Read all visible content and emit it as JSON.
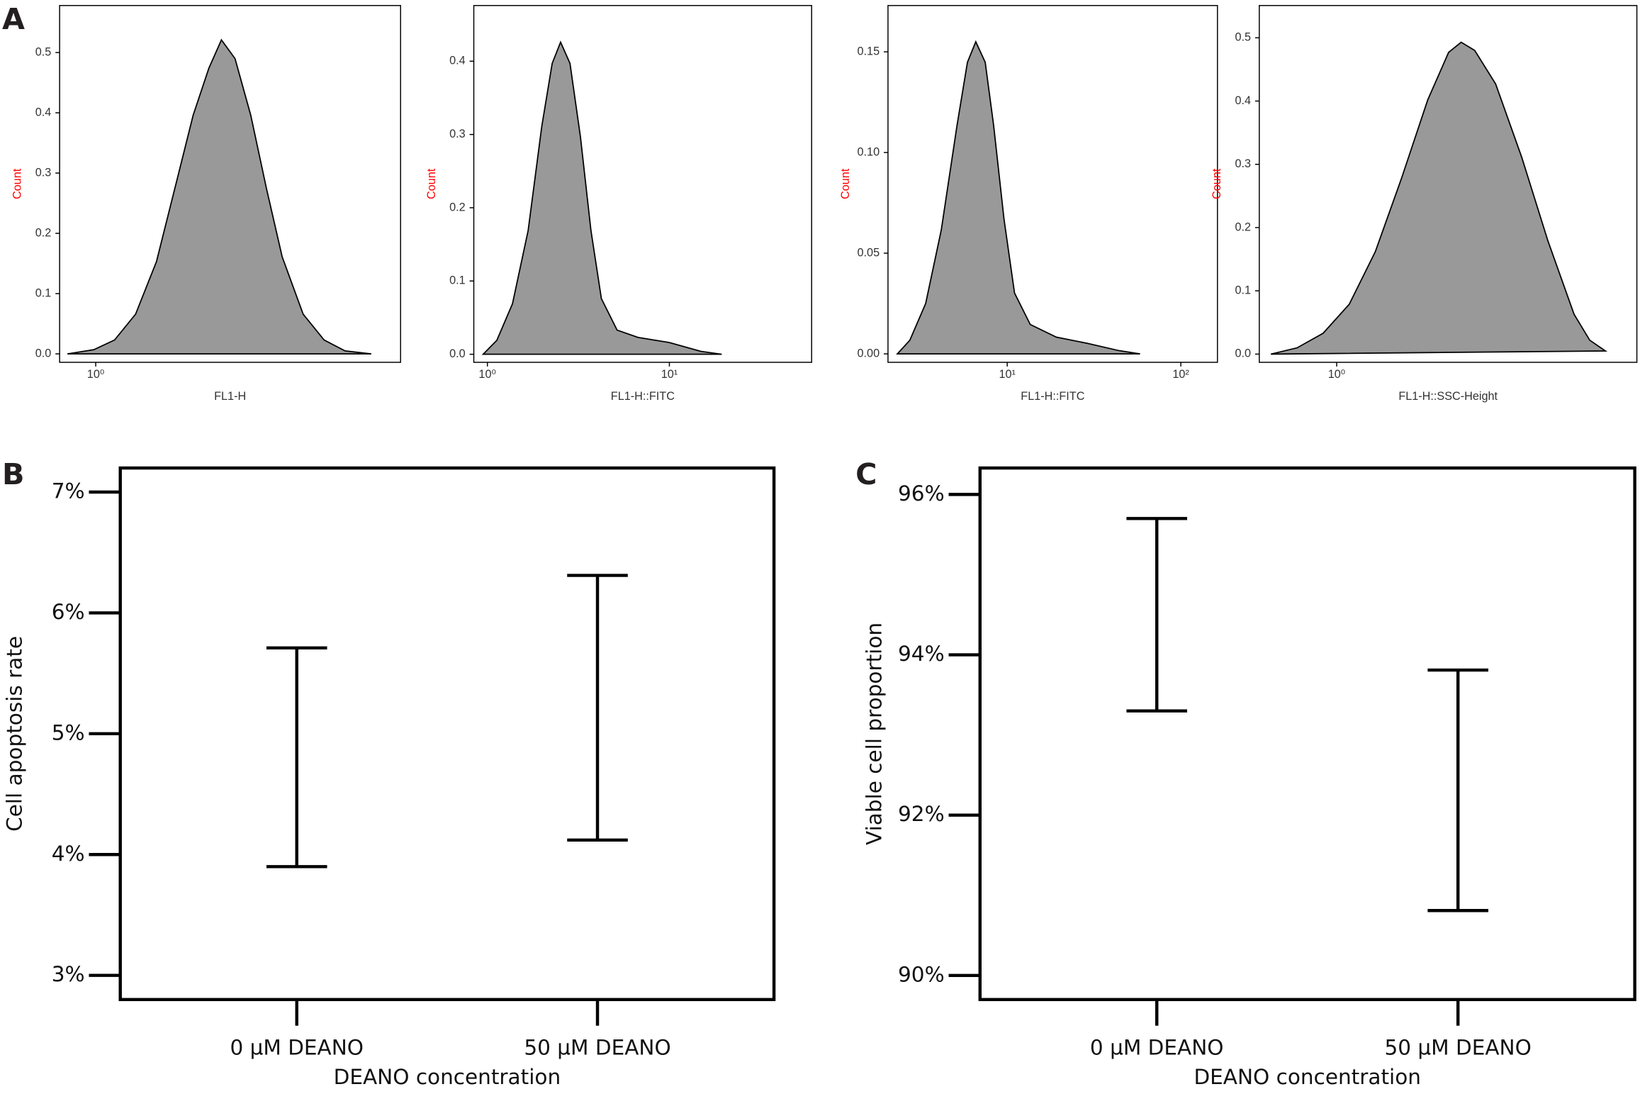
{
  "panel_labels": [
    "A",
    "B",
    "C"
  ],
  "chart_data": [
    {
      "type": "area",
      "xscale": "log",
      "color": "#999999",
      "ylabel": "Count",
      "xlabel": "FL1-H",
      "x": [
        0.856,
        0.99,
        1.109,
        1.245,
        1.396,
        1.567,
        1.708,
        1.862,
        1.995,
        2.15,
        2.344,
        2.556,
        2.786,
        3.126,
        3.508,
        3.936,
        4.545
      ],
      "values": [
        0,
        0.007,
        0.023,
        0.066,
        0.153,
        0.292,
        0.396,
        0.474,
        0.521,
        0.49,
        0.396,
        0.274,
        0.161,
        0.066,
        0.023,
        0.005,
        0
      ],
      "xlim": [
        0.82,
        5.34
      ],
      "xticks": [
        {
          "value": 1,
          "label": "10⁰"
        }
      ],
      "ylim": [
        -0.014,
        0.578
      ],
      "yticks": [
        {
          "value": 0,
          "label": "0.0"
        },
        0.1,
        0.2,
        0.3,
        0.4,
        0.5
      ]
    },
    {
      "type": "area",
      "xscale": "log",
      "color": "#999999",
      "ylabel": "Count",
      "xlabel": "FL1-H::FITC",
      "x": [
        0.948,
        1.127,
        1.374,
        1.675,
        1.99,
        2.27,
        2.525,
        2.844,
        3.245,
        3.707,
        4.23,
        5.16,
        6.72,
        10,
        14.87,
        19.4
      ],
      "values": [
        0,
        0.019,
        0.069,
        0.169,
        0.311,
        0.397,
        0.426,
        0.397,
        0.297,
        0.169,
        0.076,
        0.033,
        0.023,
        0.016,
        0.004,
        0
      ],
      "xlim": [
        0.842,
        60.5
      ],
      "xticks": [
        {
          "value": 1,
          "label": "10⁰"
        },
        {
          "value": 10,
          "label": "10¹"
        }
      ],
      "ylim": [
        -0.011,
        0.476
      ],
      "yticks": [
        {
          "value": 0,
          "label": "0.0"
        },
        0.1,
        0.2,
        0.3,
        0.4
      ]
    },
    {
      "type": "area",
      "xscale": "log",
      "color": "#999999",
      "ylabel": "Count",
      "xlabel": "FL1-H::FITC",
      "x": [
        2.33,
        2.75,
        3.39,
        4.17,
        5.14,
        5.9,
        6.59,
        7.47,
        8.35,
        9.59,
        11.02,
        13.57,
        19.19,
        29.1,
        44.1,
        58.2
      ],
      "values": [
        0,
        0.0068,
        0.025,
        0.0615,
        0.1135,
        0.1448,
        0.155,
        0.1448,
        0.1135,
        0.0667,
        0.0302,
        0.0146,
        0.0083,
        0.0052,
        0.0016,
        0
      ],
      "xlim": [
        2.057,
        162.5
      ],
      "xticks": [
        {
          "value": 10,
          "label": "10¹"
        },
        {
          "value": 100,
          "label": "10²"
        }
      ],
      "ylim": [
        -0.0042,
        0.173
      ],
      "yticks": [
        {
          "value": 0,
          "label": "0.00"
        },
        0.05,
        {
          "value": 0.1,
          "label": "0.10"
        },
        0.15
      ]
    },
    {
      "type": "area",
      "xscale": "log",
      "color": "#999999",
      "ylabel": "Count",
      "xlabel": "FL1-H::SSC-Height",
      "x": [
        0.696,
        0.804,
        0.928,
        1.072,
        1.237,
        1.429,
        1.651,
        1.852,
        1.984,
        2.138,
        2.399,
        2.77,
        3.199,
        3.694,
        4.027,
        4.391
      ],
      "values": [
        0,
        0.0099,
        0.033,
        0.079,
        0.162,
        0.278,
        0.402,
        0.477,
        0.493,
        0.48,
        0.427,
        0.311,
        0.179,
        0.063,
        0.022,
        0.005
      ],
      "xlim": [
        0.653,
        5.22
      ],
      "xticks": [
        {
          "value": 1,
          "label": "10⁰"
        }
      ],
      "ylim": [
        -0.013,
        0.551
      ],
      "yticks": [
        {
          "value": 0,
          "label": "0.0"
        },
        0.1,
        0.2,
        0.3,
        0.4,
        0.5
      ]
    },
    {
      "type": "errorbar",
      "color": "#000000",
      "ylabel": "Cell apoptosis rate",
      "xlabel": "DEANO concentration",
      "categories": [
        "0 µM DEANO",
        "50 µM DEANO"
      ],
      "lower": [
        3.9,
        4.12
      ],
      "upper": [
        5.71,
        6.31
      ],
      "ylim": [
        2.8,
        7.199
      ],
      "yticks": [
        {
          "value": 3,
          "label": "3%"
        },
        {
          "value": 4,
          "label": "4%"
        },
        {
          "value": 5,
          "label": "5%"
        },
        {
          "value": 6,
          "label": "6%"
        },
        {
          "value": 7,
          "label": "7%"
        }
      ]
    },
    {
      "type": "errorbar",
      "color": "#000000",
      "ylabel": "Viable cell proportion",
      "xlabel": "DEANO concentration",
      "categories": [
        "0 µM DEANO",
        "50 µM DEANO"
      ],
      "lower": [
        93.3,
        90.81
      ],
      "upper": [
        95.7,
        93.81
      ],
      "ylim": [
        89.7,
        96.33
      ],
      "yticks": [
        {
          "value": 90,
          "label": "90%"
        },
        {
          "value": 92,
          "label": "92%"
        },
        {
          "value": 94,
          "label": "94%"
        },
        {
          "value": 96,
          "label": "96%"
        }
      ]
    }
  ]
}
